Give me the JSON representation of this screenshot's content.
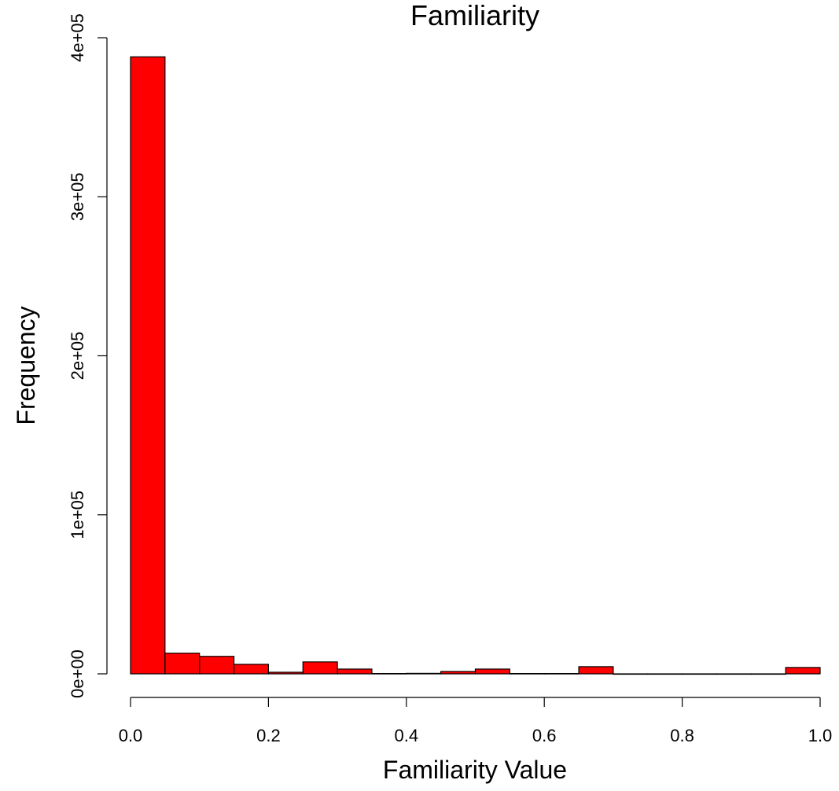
{
  "chart_data": {
    "type": "bar",
    "title": "Familiarity",
    "xlabel": "Familiarity Value",
    "ylabel": "Frequency",
    "bin_edges": [
      0.0,
      0.05,
      0.1,
      0.15,
      0.2,
      0.25,
      0.3,
      0.35,
      0.4,
      0.45,
      0.5,
      0.55,
      0.6,
      0.65,
      0.7,
      0.75,
      0.8,
      0.85,
      0.9,
      0.95,
      1.0
    ],
    "values": [
      388000,
      13000,
      11000,
      6000,
      1000,
      7500,
      3000,
      200,
      300,
      1500,
      3000,
      200,
      200,
      4500,
      0,
      0,
      0,
      0,
      0,
      4000
    ],
    "xlim": [
      0.0,
      1.0
    ],
    "ylim": [
      0,
      400000
    ],
    "x_ticks": [
      0.0,
      0.2,
      0.4,
      0.6,
      0.8,
      1.0
    ],
    "x_tick_labels": [
      "0.0",
      "0.2",
      "0.4",
      "0.6",
      "0.8",
      "1.0"
    ],
    "y_ticks": [
      0,
      100000,
      200000,
      300000,
      400000
    ],
    "y_tick_labels": [
      "0e+00",
      "1e+05",
      "2e+05",
      "3e+05",
      "4e+05"
    ],
    "bar_color": "#ff0000",
    "bar_edge_color": "#000000",
    "grid": false,
    "legend": false
  }
}
